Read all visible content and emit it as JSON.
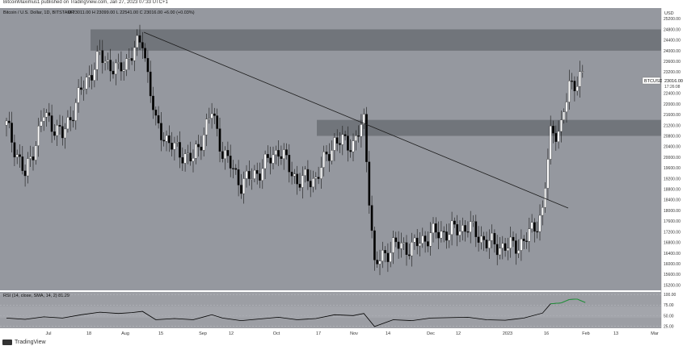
{
  "header": {
    "text": "BitcoinMaximus1 published on TradingView.com, Jan 27, 2023 07:33 UTC+1"
  },
  "legend": {
    "title": "Bitcoin / U.S. Dollar, 1D, BITSTAMP",
    "ohlc": "O 23011.00  H 23099.00  L 22541.00  C 23016.00  +6.00 (+0.03%)",
    "currency": "USD"
  },
  "price_tag": {
    "symbol": "BTCUSD",
    "price": "23016.00",
    "countdown": "17:26:08"
  },
  "rsi_legend": "RSI (14, close, SMA, 14, 2)   81.29",
  "footer": {
    "brand": "TradingView"
  },
  "colors": {
    "chart_bg": "#95989f",
    "panel_bg": "#9c9ea4",
    "up": "#ffffff",
    "down": "#000000",
    "zone": "#6b6e74",
    "rsi_line": "#000000",
    "rsi_overbought": "#1f9c3a"
  },
  "chart_data": [
    {
      "type": "candlestick",
      "title": "Bitcoin / U.S. Dollar, 1D, BITSTAMP",
      "ylabel": "USD",
      "ylim": [
        15000,
        25600
      ],
      "y_ticks": [
        "25200.00",
        "24800.00",
        "24400.00",
        "24000.00",
        "23600.00",
        "23200.00",
        "22800.00",
        "22400.00",
        "22000.00",
        "21600.00",
        "21200.00",
        "20800.00",
        "20400.00",
        "20000.00",
        "19600.00",
        "19200.00",
        "18800.00",
        "18400.00",
        "18000.00",
        "17600.00",
        "17200.00",
        "16800.00",
        "16400.00",
        "16000.00",
        "15600.00",
        "15200.00"
      ],
      "x_ticks": [
        "Jul",
        "18",
        "Aug",
        "15",
        "Sep",
        "12",
        "Oct",
        "17",
        "Nov",
        "14",
        "Dec",
        "12",
        "2023",
        "16",
        "Feb",
        "13",
        "Mar"
      ],
      "series": [
        {
          "name": "BTCUSD",
          "points": [
            {
              "d": "Jun 24",
              "c": 21200
            },
            {
              "d": "Jul 1",
              "c": 19300
            },
            {
              "d": "Jul 8",
              "c": 21600
            },
            {
              "d": "Jul 15",
              "c": 20800
            },
            {
              "d": "Jul 22",
              "c": 22500
            },
            {
              "d": "Jul 29",
              "c": 23800
            },
            {
              "d": "Aug 5",
              "c": 23200
            },
            {
              "d": "Aug 10",
              "c": 23900
            },
            {
              "d": "Aug 14",
              "c": 24400
            },
            {
              "d": "Aug 19",
              "c": 21200
            },
            {
              "d": "Aug 26",
              "c": 20300
            },
            {
              "d": "Sep 2",
              "c": 19900
            },
            {
              "d": "Sep 9",
              "c": 21700
            },
            {
              "d": "Sep 13",
              "c": 20200
            },
            {
              "d": "Sep 20",
              "c": 19000
            },
            {
              "d": "Sep 27",
              "c": 19500
            },
            {
              "d": "Oct 4",
              "c": 20300
            },
            {
              "d": "Oct 11",
              "c": 19100
            },
            {
              "d": "Oct 18",
              "c": 19200
            },
            {
              "d": "Oct 25",
              "c": 20600
            },
            {
              "d": "Nov 1",
              "c": 20500
            },
            {
              "d": "Nov 5",
              "c": 21300
            },
            {
              "d": "Nov 9",
              "c": 15900
            },
            {
              "d": "Nov 16",
              "c": 16700
            },
            {
              "d": "Nov 23",
              "c": 16600
            },
            {
              "d": "Nov 30",
              "c": 17100
            },
            {
              "d": "Dec 7",
              "c": 17200
            },
            {
              "d": "Dec 14",
              "c": 17400
            },
            {
              "d": "Dec 21",
              "c": 16800
            },
            {
              "d": "Dec 28",
              "c": 16600
            },
            {
              "d": "Jan 4",
              "c": 16800
            },
            {
              "d": "Jan 11",
              "c": 17900
            },
            {
              "d": "Jan 14",
              "c": 20900
            },
            {
              "d": "Jan 18",
              "c": 21100
            },
            {
              "d": "Jan 21",
              "c": 22700
            },
            {
              "d": "Jan 24",
              "c": 22900
            },
            {
              "d": "Jan 27",
              "c": 23016
            }
          ]
        }
      ],
      "zones": [
        {
          "from": 24000,
          "to": 24800
        },
        {
          "from": 20800,
          "to": 21400
        }
      ],
      "trendline": [
        {
          "d": "Aug 10",
          "y": 24800
        },
        {
          "d": "Jan 24",
          "y": 18400
        }
      ]
    },
    {
      "type": "line",
      "title": "RSI (14, close, SMA, 14, 2)",
      "ylim": [
        20,
        106
      ],
      "y_ticks": [
        "100.00",
        "75.00",
        "50.00",
        "25.00"
      ],
      "series": [
        {
          "name": "RSI",
          "values": [
            44,
            41,
            47,
            44,
            52,
            58,
            55,
            57,
            60,
            40,
            43,
            40,
            52,
            44,
            38,
            42,
            46,
            40,
            43,
            52,
            50,
            55,
            24,
            40,
            38,
            44,
            45,
            46,
            40,
            39,
            44,
            56,
            78,
            80,
            88,
            89,
            81
          ]
        }
      ]
    }
  ]
}
